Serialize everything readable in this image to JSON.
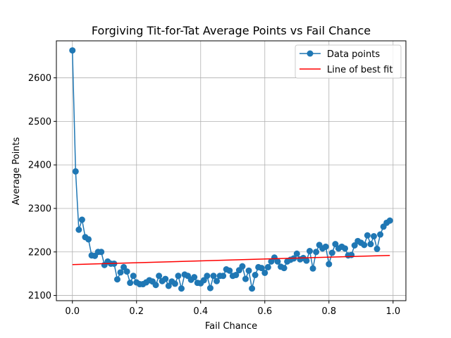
{
  "chart_data": {
    "type": "line",
    "title": "Forgiving Tit-for-Tat Average Points vs Fail Chance",
    "xlabel": "Fail Chance",
    "ylabel": "Average Points",
    "xlim": [
      -0.05,
      1.04
    ],
    "ylim": [
      2088,
      2685
    ],
    "x_ticks": [
      0.0,
      0.2,
      0.4,
      0.6,
      0.8,
      1.0
    ],
    "x_tick_labels": [
      "0.0",
      "0.2",
      "0.4",
      "0.6",
      "0.8",
      "1.0"
    ],
    "y_ticks": [
      2100,
      2200,
      2300,
      2400,
      2500,
      2600
    ],
    "y_tick_labels": [
      "2100",
      "2200",
      "2300",
      "2400",
      "2500",
      "2600"
    ],
    "grid": true,
    "legend_position": "top-right",
    "series": [
      {
        "name": "Data points",
        "kind": "line-markers",
        "color": "#1f77b4",
        "x": [
          0.0,
          0.01,
          0.02,
          0.03,
          0.04,
          0.05,
          0.06,
          0.07,
          0.08,
          0.09,
          0.1,
          0.11,
          0.12,
          0.13,
          0.14,
          0.15,
          0.16,
          0.17,
          0.18,
          0.19,
          0.2,
          0.21,
          0.22,
          0.23,
          0.24,
          0.25,
          0.26,
          0.27,
          0.28,
          0.29,
          0.3,
          0.31,
          0.32,
          0.33,
          0.34,
          0.35,
          0.36,
          0.37,
          0.38,
          0.39,
          0.4,
          0.41,
          0.42,
          0.43,
          0.44,
          0.45,
          0.46,
          0.47,
          0.48,
          0.49,
          0.5,
          0.51,
          0.52,
          0.53,
          0.54,
          0.55,
          0.56,
          0.57,
          0.58,
          0.59,
          0.6,
          0.61,
          0.62,
          0.63,
          0.64,
          0.65,
          0.66,
          0.67,
          0.68,
          0.69,
          0.7,
          0.71,
          0.72,
          0.73,
          0.74,
          0.75,
          0.76,
          0.77,
          0.78,
          0.79,
          0.8,
          0.81,
          0.82,
          0.83,
          0.84,
          0.85,
          0.86,
          0.87,
          0.88,
          0.89,
          0.9,
          0.91,
          0.92,
          0.93,
          0.94,
          0.95,
          0.96,
          0.97,
          0.98,
          0.99
        ],
        "y": [
          2663,
          2385,
          2251,
          2274,
          2234,
          2229,
          2192,
          2191,
          2200,
          2200,
          2170,
          2178,
          2173,
          2173,
          2137,
          2153,
          2165,
          2155,
          2129,
          2145,
          2130,
          2126,
          2126,
          2130,
          2135,
          2132,
          2124,
          2145,
          2133,
          2138,
          2122,
          2132,
          2127,
          2145,
          2116,
          2148,
          2145,
          2136,
          2142,
          2129,
          2128,
          2135,
          2145,
          2117,
          2145,
          2133,
          2145,
          2145,
          2160,
          2157,
          2145,
          2147,
          2158,
          2167,
          2138,
          2157,
          2116,
          2147,
          2165,
          2163,
          2152,
          2165,
          2178,
          2187,
          2178,
          2166,
          2163,
          2178,
          2182,
          2185,
          2196,
          2183,
          2186,
          2180,
          2202,
          2162,
          2200,
          2216,
          2208,
          2212,
          2172,
          2198,
          2218,
          2208,
          2212,
          2208,
          2192,
          2193,
          2215,
          2225,
          2221,
          2216,
          2238,
          2218,
          2236,
          2207,
          2240,
          2258,
          2267,
          2272
        ]
      },
      {
        "name": "Line of best fit",
        "kind": "line",
        "color": "#ff0000",
        "x": [
          0.0,
          0.99
        ],
        "y": [
          2171,
          2192
        ]
      }
    ]
  }
}
